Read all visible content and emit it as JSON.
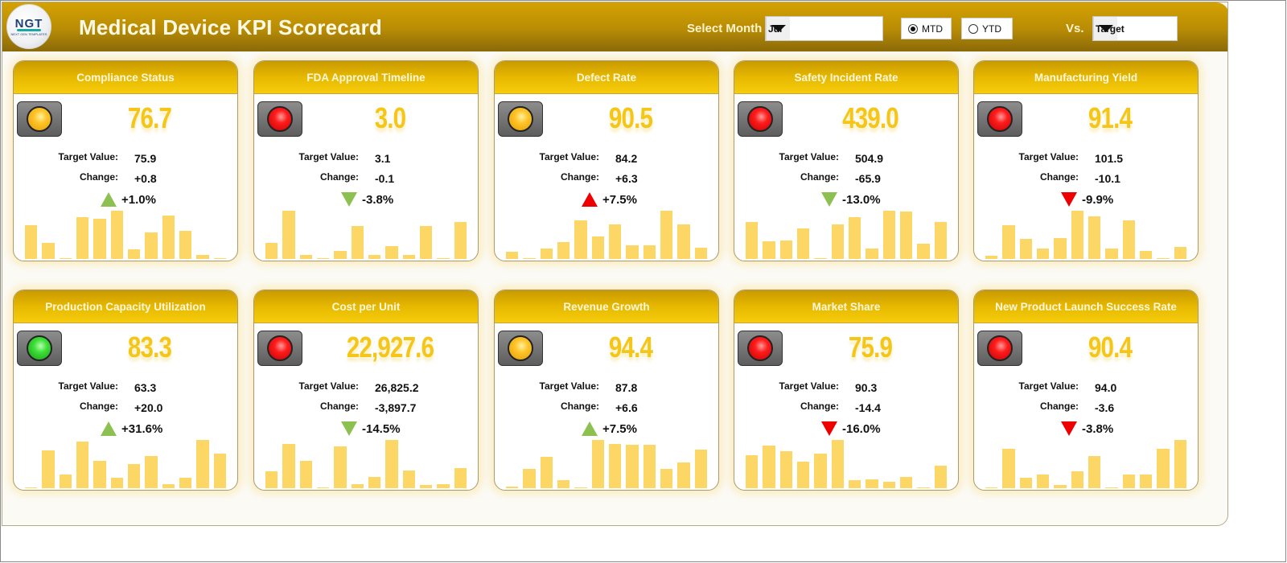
{
  "header": {
    "title": "Medical Device KPI Scorecard",
    "logo_text": "NGT",
    "logo_subtext": "NEXT GEN TEMPLATES",
    "select_month_label": "Select Month",
    "month_value": "Jul",
    "period_options": [
      {
        "label": "MTD",
        "selected": true
      },
      {
        "label": "YTD",
        "selected": false
      }
    ],
    "vs_label": "Vs.",
    "vs_value": "Target"
  },
  "labels": {
    "target": "Target Value:",
    "change": "Change:"
  },
  "colors": {
    "header_gold": "#b88c05",
    "card_head_gold": "#e6b800",
    "big_value": "#f5c518",
    "bar": "#fdd766",
    "arrow_green": "#8cc152",
    "arrow_red": "#ee0000"
  },
  "cards": [
    {
      "title": "Compliance Status",
      "status": "yellow",
      "value": "76.7",
      "target": "75.9",
      "change": "+0.8",
      "pct": "+1.0%",
      "dir": "up",
      "arrow_color": "green"
    },
    {
      "title": "FDA Approval Timeline",
      "status": "red",
      "value": "3.0",
      "target": "3.1",
      "change": "-0.1",
      "pct": "-3.8%",
      "dir": "down",
      "arrow_color": "green"
    },
    {
      "title": "Defect Rate",
      "status": "yellow",
      "value": "90.5",
      "target": "84.2",
      "change": "+6.3",
      "pct": "+7.5%",
      "dir": "up",
      "arrow_color": "red"
    },
    {
      "title": "Safety Incident Rate",
      "status": "red",
      "value": "439.0",
      "target": "504.9",
      "change": "-65.9",
      "pct": "-13.0%",
      "dir": "down",
      "arrow_color": "green"
    },
    {
      "title": "Manufacturing Yield",
      "status": "red",
      "value": "91.4",
      "target": "101.5",
      "change": "-10.1",
      "pct": "-9.9%",
      "dir": "down",
      "arrow_color": "red"
    },
    {
      "title": "Production Capacity Utilization",
      "status": "green",
      "value": "83.3",
      "target": "63.3",
      "change": "+20.0",
      "pct": "+31.6%",
      "dir": "up",
      "arrow_color": "green"
    },
    {
      "title": "Cost per Unit",
      "status": "red",
      "value": "22,927.6",
      "target": "26,825.2",
      "change": "-3,897.7",
      "pct": "-14.5%",
      "dir": "down",
      "arrow_color": "green"
    },
    {
      "title": "Revenue Growth",
      "status": "yellow",
      "value": "94.4",
      "target": "87.8",
      "change": "+6.6",
      "pct": "+7.5%",
      "dir": "up",
      "arrow_color": "green"
    },
    {
      "title": "Market Share",
      "status": "red",
      "value": "75.9",
      "target": "90.3",
      "change": "-14.4",
      "pct": "-16.0%",
      "dir": "down",
      "arrow_color": "red"
    },
    {
      "title": "New Product Launch Success Rate",
      "status": "red",
      "value": "90.4",
      "target": "94.0",
      "change": "-3.6",
      "pct": "-3.8%",
      "dir": "down",
      "arrow_color": "red"
    }
  ],
  "chart_data": [
    {
      "type": "bar",
      "title": "Compliance Status",
      "categories": [
        "1",
        "2",
        "3",
        "4",
        "5",
        "6",
        "7",
        "8",
        "9",
        "10",
        "11",
        "12"
      ],
      "values": [
        70,
        33,
        2,
        87,
        84,
        100,
        20,
        55,
        90,
        59,
        9,
        2
      ],
      "note": "relative heights, unlabeled axes"
    },
    {
      "type": "bar",
      "title": "FDA Approval Timeline",
      "categories": [
        "1",
        "2",
        "3",
        "4",
        "5",
        "6",
        "7",
        "8",
        "9",
        "10",
        "11",
        "12"
      ],
      "values": [
        34,
        100,
        9,
        2,
        17,
        68,
        9,
        27,
        9,
        68,
        2,
        76
      ]
    },
    {
      "type": "bar",
      "title": "Defect Rate",
      "categories": [
        "1",
        "2",
        "3",
        "4",
        "5",
        "6",
        "7",
        "8",
        "9",
        "10",
        "11",
        "12"
      ],
      "values": [
        15,
        1,
        21,
        35,
        80,
        46,
        72,
        28,
        29,
        100,
        72,
        24
      ]
    },
    {
      "type": "bar",
      "title": "Safety Incident Rate",
      "categories": [
        "1",
        "2",
        "3",
        "4",
        "5",
        "6",
        "7",
        "8",
        "9",
        "10",
        "11",
        "12"
      ],
      "values": [
        76,
        36,
        38,
        63,
        1,
        71,
        86,
        21,
        100,
        98,
        32,
        76
      ]
    },
    {
      "type": "bar",
      "title": "Manufacturing Yield",
      "categories": [
        "1",
        "2",
        "3",
        "4",
        "5",
        "6",
        "7",
        "8",
        "9",
        "10",
        "11",
        "12"
      ],
      "values": [
        7,
        70,
        41,
        22,
        43,
        100,
        89,
        22,
        80,
        16,
        2,
        25
      ]
    },
    {
      "type": "bar",
      "title": "Production Capacity Utilization",
      "categories": [
        "1",
        "2",
        "3",
        "4",
        "5",
        "6",
        "7",
        "8",
        "9",
        "10",
        "11",
        "12"
      ],
      "values": [
        1,
        79,
        28,
        97,
        57,
        21,
        50,
        67,
        9,
        22,
        100,
        72
      ]
    },
    {
      "type": "bar",
      "title": "Cost per Unit",
      "categories": [
        "1",
        "2",
        "3",
        "4",
        "5",
        "6",
        "7",
        "8",
        "9",
        "10",
        "11",
        "12"
      ],
      "values": [
        35,
        92,
        57,
        1,
        86,
        8,
        23,
        100,
        36,
        7,
        8,
        41
      ]
    },
    {
      "type": "bar",
      "title": "Revenue Growth",
      "categories": [
        "1",
        "2",
        "3",
        "4",
        "5",
        "6",
        "7",
        "8",
        "9",
        "10",
        "11",
        "12"
      ],
      "values": [
        4,
        40,
        65,
        16,
        2,
        100,
        91,
        90,
        90,
        40,
        54,
        80
      ]
    },
    {
      "type": "bar",
      "title": "Market Share",
      "categories": [
        "1",
        "2",
        "3",
        "4",
        "5",
        "6",
        "7",
        "8",
        "9",
        "10",
        "11",
        "12"
      ],
      "values": [
        68,
        89,
        76,
        55,
        72,
        100,
        16,
        19,
        14,
        23,
        1,
        46
      ]
    },
    {
      "type": "bar",
      "title": "New Product Launch Success Rate",
      "categories": [
        "1",
        "2",
        "3",
        "4",
        "5",
        "6",
        "7",
        "8",
        "9",
        "10",
        "11",
        "12"
      ],
      "values": [
        1,
        81,
        21,
        28,
        7,
        35,
        66,
        1,
        28,
        29,
        81,
        100
      ]
    }
  ]
}
